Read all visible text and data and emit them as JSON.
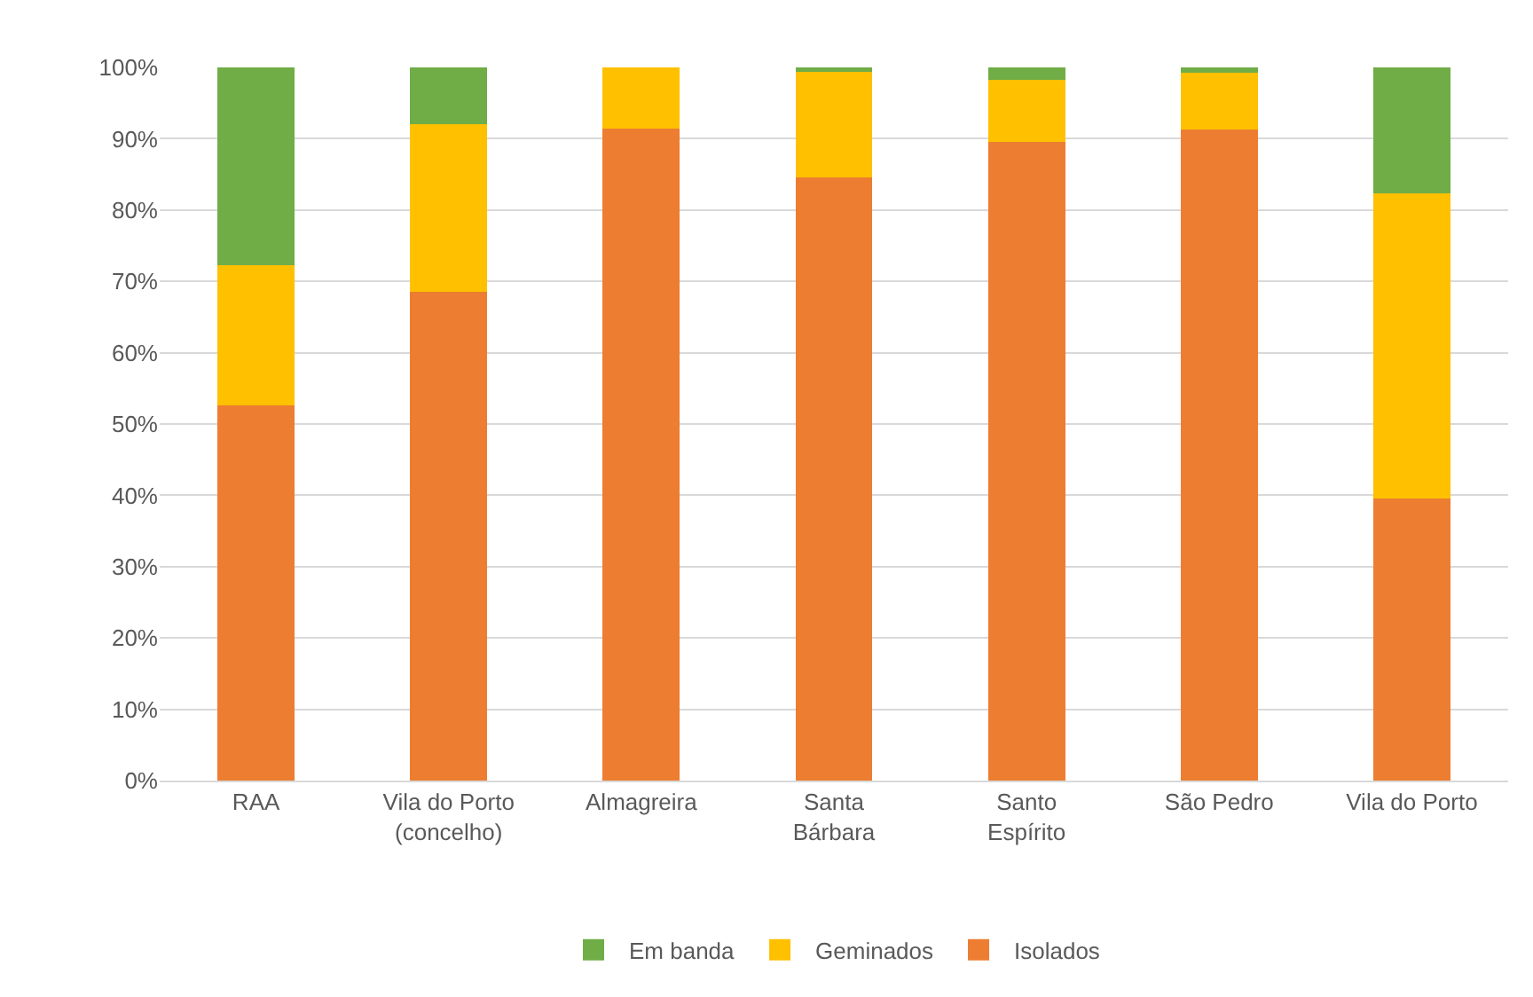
{
  "chart_data": {
    "type": "bar",
    "stacked": true,
    "categories": [
      "RAA",
      "Vila do Porto\n(concelho)",
      "Almagreira",
      "Santa\nBárbara",
      "Santo\nEspírito",
      "São Pedro",
      "Vila do Porto"
    ],
    "series": [
      {
        "name": "Isolados",
        "color": "#ed7d31",
        "values": [
          52.6,
          68.5,
          91.4,
          84.6,
          89.5,
          91.3,
          39.6
        ]
      },
      {
        "name": "Geminados",
        "color": "#ffc000",
        "values": [
          19.7,
          23.6,
          8.6,
          14.8,
          8.8,
          7.9,
          42.7
        ]
      },
      {
        "name": "Em banda",
        "color": "#70ad47",
        "values": [
          27.7,
          7.9,
          0,
          0.6,
          1.7,
          0.8,
          17.7
        ]
      }
    ],
    "ylim": [
      0,
      100
    ],
    "yticks": [
      {
        "value": 0,
        "label": "0%"
      },
      {
        "value": 10,
        "label": "10%"
      },
      {
        "value": 20,
        "label": "20%"
      },
      {
        "value": 30,
        "label": "30%"
      },
      {
        "value": 40,
        "label": "40%"
      },
      {
        "value": 50,
        "label": "50%"
      },
      {
        "value": 60,
        "label": "60%"
      },
      {
        "value": 70,
        "label": "70%"
      },
      {
        "value": 80,
        "label": "80%"
      },
      {
        "value": 90,
        "label": "90%"
      },
      {
        "value": 100,
        "label": "100%"
      }
    ],
    "grid": "y",
    "legend": "bottom"
  }
}
